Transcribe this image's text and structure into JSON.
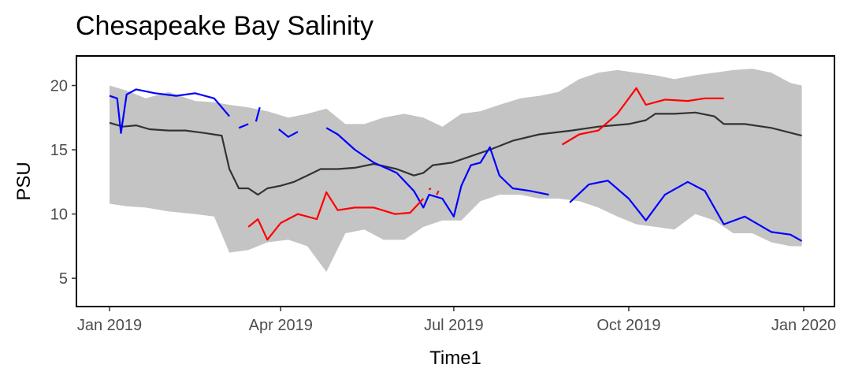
{
  "chart_data": {
    "type": "line",
    "title": "Chesapeake Bay Salinity",
    "xlabel": "Time1",
    "ylabel": "PSU",
    "xlim": [
      "2019-01-01",
      "2019-12-31"
    ],
    "ylim": [
      2.8,
      22.3
    ],
    "grid": false,
    "legend": "none",
    "x_ticks": [
      {
        "date": "2019-01-01",
        "label": "Jan 2019"
      },
      {
        "date": "2019-04-01",
        "label": "Apr 2019"
      },
      {
        "date": "2019-07-01",
        "label": "Jul 2019"
      },
      {
        "date": "2019-10-01",
        "label": "Oct 2019"
      },
      {
        "date": "2020-01-01",
        "label": "Jan 2020"
      }
    ],
    "y_ticks": [
      5,
      10,
      15,
      20
    ],
    "ribbon": {
      "color": "#c4c4c4",
      "dates": [
        "2019-01-01",
        "2019-01-10",
        "2019-01-20",
        "2019-02-01",
        "2019-02-15",
        "2019-02-25",
        "2019-03-05",
        "2019-03-15",
        "2019-03-25",
        "2019-04-05",
        "2019-04-15",
        "2019-04-25",
        "2019-05-05",
        "2019-05-15",
        "2019-05-25",
        "2019-06-05",
        "2019-06-15",
        "2019-06-25",
        "2019-07-05",
        "2019-07-15",
        "2019-07-25",
        "2019-08-05",
        "2019-08-15",
        "2019-08-25",
        "2019-09-05",
        "2019-09-15",
        "2019-09-25",
        "2019-10-05",
        "2019-10-15",
        "2019-10-25",
        "2019-11-05",
        "2019-11-15",
        "2019-11-25",
        "2019-12-05",
        "2019-12-15",
        "2019-12-25",
        "2019-12-31"
      ],
      "upper": [
        20.0,
        19.6,
        19.0,
        19.5,
        18.8,
        18.7,
        18.5,
        18.3,
        18.0,
        17.5,
        17.8,
        18.2,
        17.0,
        17.0,
        17.5,
        17.8,
        17.5,
        16.8,
        17.8,
        18.0,
        18.5,
        19.0,
        19.2,
        19.5,
        20.5,
        21.0,
        21.2,
        21.0,
        20.8,
        20.5,
        20.8,
        21.0,
        21.2,
        21.3,
        21.0,
        20.2,
        20.0
      ],
      "lower": [
        10.8,
        10.6,
        10.5,
        10.2,
        10.0,
        9.8,
        7.0,
        7.2,
        7.8,
        8.0,
        7.5,
        5.5,
        8.5,
        8.8,
        8.0,
        8.0,
        9.0,
        9.5,
        9.5,
        11.0,
        11.5,
        11.5,
        11.2,
        11.2,
        11.0,
        10.5,
        9.8,
        9.2,
        9.0,
        8.8,
        10.0,
        9.5,
        8.5,
        8.5,
        7.8,
        7.5,
        7.5
      ]
    },
    "series": [
      {
        "color": "#333333",
        "segments": [
          {
            "dates": [
              "2019-01-01",
              "2019-01-08",
              "2019-01-15",
              "2019-01-22",
              "2019-02-01",
              "2019-02-10",
              "2019-02-20",
              "2019-03-01",
              "2019-03-05",
              "2019-03-10",
              "2019-03-15",
              "2019-03-20",
              "2019-03-25",
              "2019-04-01",
              "2019-04-08",
              "2019-04-15",
              "2019-04-22",
              "2019-05-01",
              "2019-05-10",
              "2019-05-20",
              "2019-06-01",
              "2019-06-10",
              "2019-06-15",
              "2019-06-20",
              "2019-06-30",
              "2019-07-10",
              "2019-07-20",
              "2019-08-01",
              "2019-08-15",
              "2019-09-01",
              "2019-09-15",
              "2019-10-01",
              "2019-10-10",
              "2019-10-15",
              "2019-10-25",
              "2019-11-05",
              "2019-11-15",
              "2019-11-20",
              "2019-12-01",
              "2019-12-15",
              "2019-12-31"
            ],
            "values": [
              17.1,
              16.8,
              16.9,
              16.6,
              16.5,
              16.5,
              16.3,
              16.1,
              13.5,
              12.0,
              12.0,
              11.5,
              12.0,
              12.2,
              12.5,
              13.0,
              13.5,
              13.5,
              13.6,
              13.9,
              13.5,
              13.0,
              13.2,
              13.8,
              14.0,
              14.5,
              15.0,
              15.7,
              16.2,
              16.5,
              16.8,
              17.0,
              17.3,
              17.8,
              17.8,
              17.9,
              17.6,
              17.0,
              17.0,
              16.7,
              16.1
            ]
          }
        ]
      },
      {
        "color": "#0000ff",
        "segments": [
          {
            "dates": [
              "2019-01-01",
              "2019-01-05",
              "2019-01-07",
              "2019-01-10",
              "2019-01-15",
              "2019-01-25",
              "2019-02-05",
              "2019-02-15",
              "2019-02-25",
              "2019-03-05"
            ],
            "values": [
              19.2,
              19.0,
              16.3,
              19.3,
              19.7,
              19.4,
              19.2,
              19.4,
              19.0,
              17.6
            ]
          },
          {
            "dates": [
              "2019-03-10",
              "2019-03-15"
            ],
            "values": [
              16.7,
              17.0
            ]
          },
          {
            "dates": [
              "2019-03-19",
              "2019-03-21"
            ],
            "values": [
              17.2,
              18.3
            ]
          },
          {
            "dates": [
              "2019-03-31",
              "2019-04-05",
              "2019-04-10"
            ],
            "values": [
              16.6,
              16.0,
              16.4
            ]
          },
          {
            "dates": [
              "2019-04-25",
              "2019-05-01",
              "2019-05-10",
              "2019-05-20",
              "2019-06-01",
              "2019-06-10",
              "2019-06-15",
              "2019-06-18",
              "2019-06-25",
              "2019-07-01",
              "2019-07-05",
              "2019-07-10",
              "2019-07-15",
              "2019-07-20",
              "2019-07-25",
              "2019-08-01",
              "2019-08-10",
              "2019-08-20"
            ],
            "values": [
              16.7,
              16.2,
              15.0,
              14.0,
              13.2,
              11.8,
              10.5,
              11.5,
              11.2,
              9.8,
              12.2,
              13.8,
              14.0,
              15.2,
              13.0,
              12.0,
              11.8,
              11.5
            ]
          },
          {
            "dates": [
              "2019-08-31",
              "2019-09-10",
              "2019-09-20",
              "2019-10-01",
              "2019-10-10",
              "2019-10-20",
              "2019-11-01",
              "2019-11-10",
              "2019-11-20",
              "2019-12-01",
              "2019-12-15",
              "2019-12-25",
              "2019-12-31"
            ],
            "values": [
              10.9,
              12.3,
              12.6,
              11.2,
              9.5,
              11.5,
              12.5,
              11.8,
              9.2,
              9.8,
              8.6,
              8.4,
              7.9
            ]
          }
        ]
      },
      {
        "color": "#ff0000",
        "segments": [
          {
            "dates": [
              "2019-03-15",
              "2019-03-20",
              "2019-03-25",
              "2019-04-01",
              "2019-04-10",
              "2019-04-20",
              "2019-04-25",
              "2019-05-01",
              "2019-05-10",
              "2019-05-20",
              "2019-05-31",
              "2019-06-08",
              "2019-06-15"
            ],
            "values": [
              9.0,
              9.6,
              8.0,
              9.3,
              10.0,
              9.6,
              11.7,
              10.3,
              10.5,
              10.5,
              10.0,
              10.1,
              11.2
            ]
          },
          {
            "dates": [
              "2019-06-18",
              "2019-06-19"
            ],
            "values": [
              11.9,
              12.0
            ]
          },
          {
            "dates": [
              "2019-06-22",
              "2019-06-23"
            ],
            "values": [
              11.5,
              11.8
            ]
          },
          {
            "dates": [
              "2019-08-27",
              "2019-09-05",
              "2019-09-15",
              "2019-09-25",
              "2019-10-05",
              "2019-10-10",
              "2019-10-20",
              "2019-11-01",
              "2019-11-10",
              "2019-11-20"
            ],
            "values": [
              15.4,
              16.2,
              16.5,
              17.8,
              19.8,
              18.5,
              18.9,
              18.8,
              19.0,
              19.0
            ]
          }
        ]
      }
    ]
  }
}
